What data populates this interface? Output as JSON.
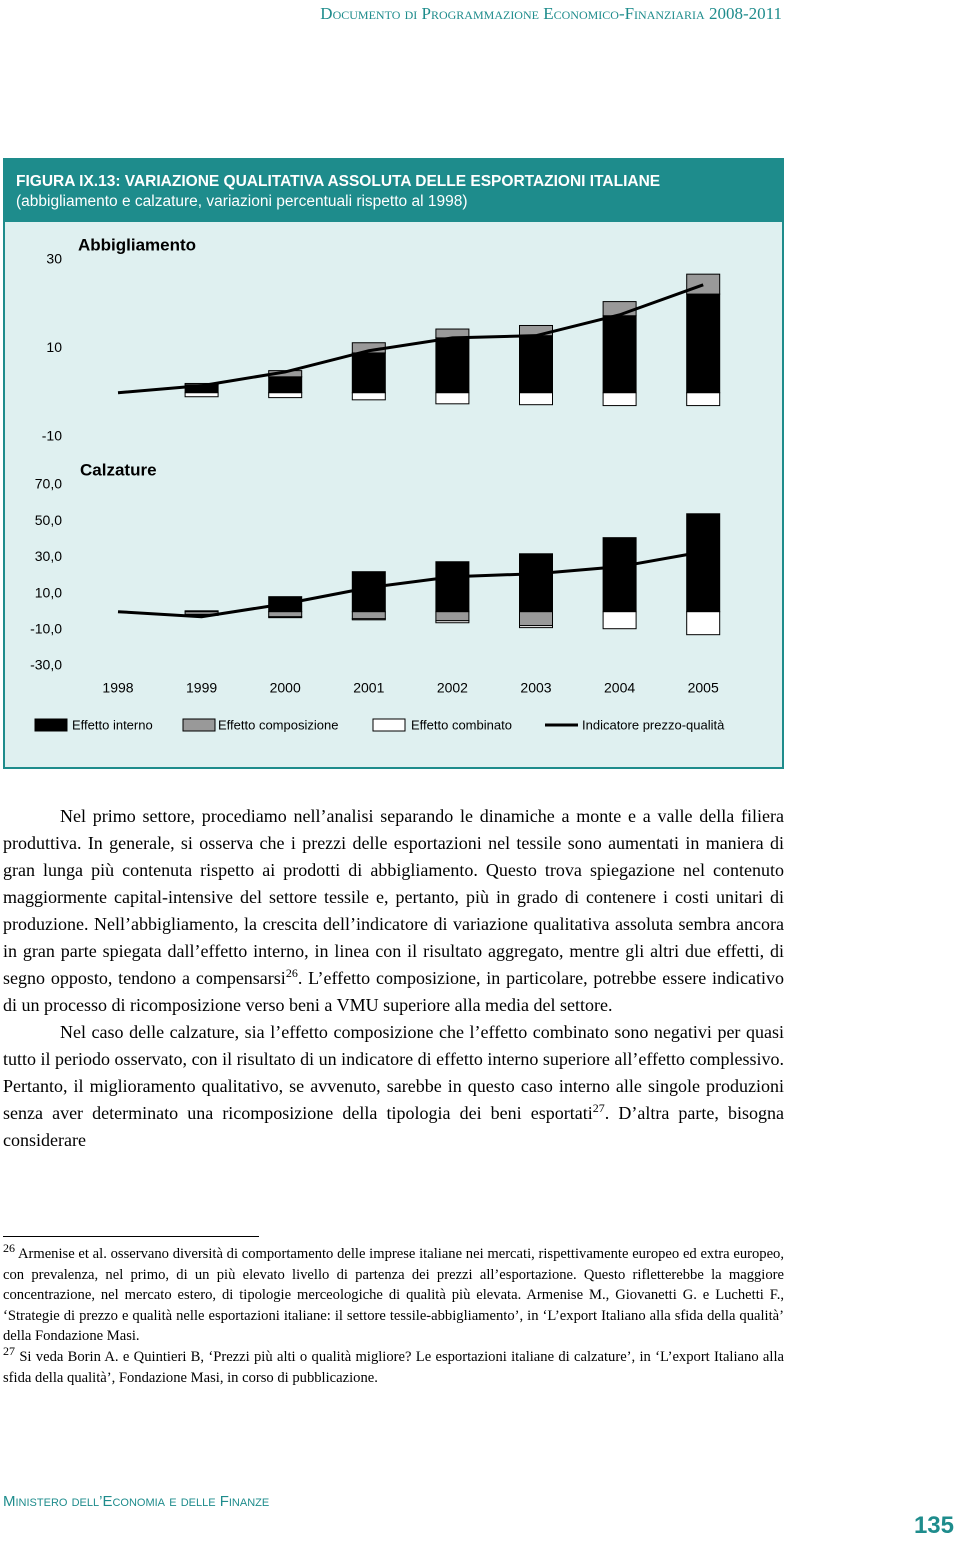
{
  "header": "Documento di Programmazione Economico-Finanziaria 2008-2011",
  "figure": {
    "title": "FIGURA IX.13: VARIAZIONE QUALITATIVA ASSOLUTA DELLE ESPORTAZIONI ITALIANE",
    "subtitle": "(abbigliamento e calzature, variazioni percentuali rispetto al 1998)"
  },
  "chart_data": [
    {
      "type": "bar",
      "title": "Abbigliamento",
      "stacked": true,
      "ylim": [
        -10,
        30
      ],
      "yticks": [
        30,
        10,
        -10
      ],
      "series": [
        {
          "name": "Effetto interno",
          "color": "#000000",
          "values": [
            0,
            1.8,
            3.6,
            9.0,
            12.4,
            12.9,
            17.4,
            22.3
          ]
        },
        {
          "name": "Effetto composizione",
          "color": "#999999",
          "values": [
            0,
            0.3,
            1.4,
            2.3,
            2.0,
            2.3,
            3.2,
            4.5
          ]
        },
        {
          "name": "Effetto combinato",
          "color": "#ffffff",
          "values": [
            0,
            -0.9,
            -1.1,
            -1.6,
            -2.5,
            -2.7,
            -2.9,
            -2.9
          ]
        },
        {
          "name": "Indicatore prezzo-qualità",
          "type": "line",
          "color": "#000000",
          "values": [
            0,
            1.6,
            4.7,
            9.5,
            12.4,
            12.9,
            17.6,
            24.4
          ]
        }
      ]
    },
    {
      "type": "bar",
      "title": "Calzature",
      "stacked": true,
      "categories": [
        "1998",
        "1999",
        "2000",
        "2001",
        "2002",
        "2003",
        "2004",
        "2005"
      ],
      "ylim": [
        -30,
        70
      ],
      "yticks": [
        {
          "value": 70,
          "label": "70,0"
        },
        {
          "value": 50,
          "label": "50,0"
        },
        {
          "value": 30,
          "label": "30,0"
        },
        {
          "value": 10,
          "label": "10,0"
        },
        {
          "value": -10,
          "label": "-10,0"
        },
        {
          "value": -30,
          "label": "-30,0"
        }
      ],
      "series": [
        {
          "color": "#000000",
          "values": [
            0,
            0.5,
            8.3,
            22.1,
            27.6,
            32.0,
            40.9,
            54.1
          ]
        },
        {
          "color": "#999999",
          "values": [
            0,
            -1.5,
            -2.8,
            -3.9,
            -5.0,
            -7.7,
            0,
            0
          ]
        },
        {
          "color": "#ffffff",
          "values": [
            0,
            -0.5,
            -0.5,
            -0.6,
            -1.1,
            -1.1,
            -9.4,
            -12.7
          ]
        },
        {
          "type": "line",
          "color": "#000000",
          "values": [
            0,
            -2.8,
            4.4,
            13.3,
            19.3,
            21.0,
            24.9,
            33.1
          ]
        }
      ]
    }
  ],
  "body": [
    [
      "Nel primo settore, procediamo nell’analisi separando le dinamiche a monte e a valle della filiera produttiva. In generale, si osserva che i prezzi delle esportazioni nel tessile sono aumentati in maniera di gran lunga più contenuta rispetto ai prodotti di abbigliamento. Questo trova spiegazione nel contenuto maggiormente capital-intensive del settore tessile e, pertanto, più in grado di contenere i costi unitari di produzione. Nell’abbigliamento, la crescita dell’indicatore di variazione qualitativa assoluta sembra ancora in gran parte spiegata dall’effetto interno, in linea con il risultato aggregato, mentre gli altri due effetti, di segno opposto, tendono a compensarsi",
      "26",
      ". L’effetto composizione, in particolare, potrebbe essere indicativo di un processo di ricomposizione verso beni a VMU superiore alla media del settore."
    ],
    [
      "Nel caso delle calzature, sia l’effetto composizione che l’effetto combinato sono negativi per quasi tutto il periodo osservato, con il risultato di un indicatore di effetto interno superiore all’effetto complessivo. Pertanto, il miglioramento qualitativo, se avvenuto, sarebbe in questo caso interno alle singole produzioni senza aver determinato una ricomposizione della tipologia dei beni esportati",
      "27",
      ". D’altra parte, bisogna considerare"
    ]
  ],
  "footnotes": [
    {
      "number": "26",
      "text": "Armenise et al. osservano diversità di comportamento delle imprese italiane nei mercati, rispettivamente europeo ed extra europeo, con prevalenza, nel primo, di un più elevato livello di partenza dei prezzi all’esportazione. Questo rifletterebbe la maggiore concentrazione, nel mercato estero, di tipologie merceologiche di qualità più elevata. Armenise M., Giovanetti G. e Luchetti F., ‘Strategie di prezzo e qualità nelle esportazioni italiane: il settore tessile-abbigliamento’, in ‘L’export Italiano alla sfida della qualità’ della Fondazione Masi."
    },
    {
      "number": "27",
      "text": "Si veda Borin A. e Quintieri B, ‘Prezzi più alti o qualità migliore? Le esportazioni italiane di calzature’, in ‘L’export Italiano alla sfida della qualità’, Fondazione Masi, in corso di pubblicazione."
    }
  ],
  "footer": "Ministero dell’Economia e delle Finanze",
  "page_number": "135"
}
